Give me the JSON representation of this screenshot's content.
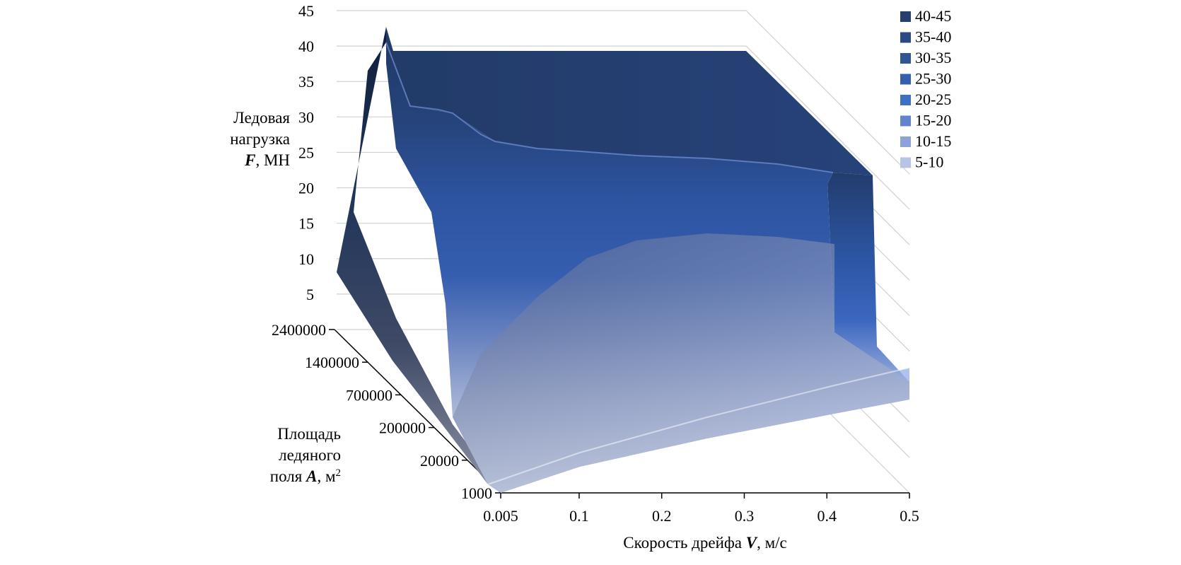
{
  "chart_data": {
    "type": "surface",
    "z_axis": {
      "title_lines": [
        "Ледовая",
        "нагрузка"
      ],
      "title_var": "F",
      "title_unit": ", МН",
      "ticks": [
        "5",
        "10",
        "15",
        "20",
        "25",
        "30",
        "35",
        "40",
        "45"
      ],
      "range": [
        0,
        45
      ]
    },
    "depth_axis": {
      "title_lines": [
        "Площадь",
        "ледяного"
      ],
      "title_prefix": "поля ",
      "title_var": "A",
      "title_unit": ", м",
      "title_sup": "2",
      "categories": [
        "1000",
        "20000",
        "200000",
        "700000",
        "1400000",
        "2400000"
      ]
    },
    "x_axis": {
      "title_prefix": "Скорость дрейфа ",
      "title_var": "V",
      "title_unit": ", м/с",
      "categories": [
        "0.005",
        "0.1",
        "0.2",
        "0.3",
        "0.4",
        "0.5"
      ]
    },
    "legend": {
      "position": "top-right",
      "items": [
        {
          "label": "40-45",
          "color": "#253f6e"
        },
        {
          "label": "35-40",
          "color": "#2a4a85"
        },
        {
          "label": "30-35",
          "color": "#2f5596"
        },
        {
          "label": "25-30",
          "color": "#3461ad"
        },
        {
          "label": "20-25",
          "color": "#3f6fc2"
        },
        {
          "label": "15-20",
          "color": "#6384cc"
        },
        {
          "label": "10-15",
          "color": "#8da2d8"
        },
        {
          "label": "5-10",
          "color": "#b7c4e6"
        }
      ]
    },
    "surface_approx_max": 43
  }
}
